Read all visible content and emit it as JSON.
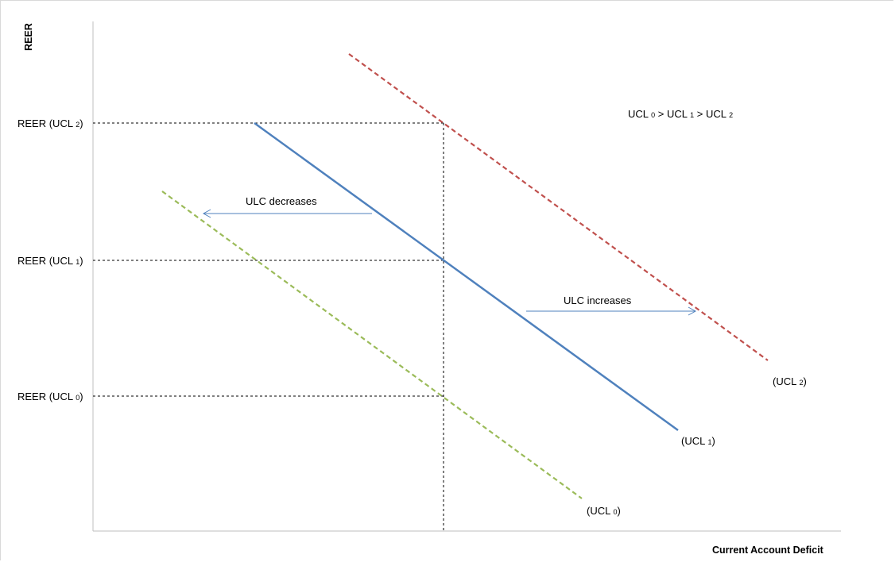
{
  "axes": {
    "y_label": "REER",
    "x_label": "Current Account Deficit"
  },
  "y_ticks": [
    {
      "main": "REER (UCL ",
      "sub": "2",
      "end": ")"
    },
    {
      "main": "REER (UCL ",
      "sub": "1",
      "end": ")"
    },
    {
      "main": "REER (UCL ",
      "sub": "0",
      "end": ")"
    }
  ],
  "curves": [
    {
      "label_main": "(UCL ",
      "sub": "2",
      "end": ")",
      "color": "#c0504d",
      "style": "dashed"
    },
    {
      "label_main": "(UCL ",
      "sub": "1",
      "end": ")",
      "color": "#4f81bd",
      "style": "solid"
    },
    {
      "label_main": "(UCL ",
      "sub": "0",
      "end": ")",
      "color": "#9bbb59",
      "style": "dashed"
    }
  ],
  "annotations": {
    "ulc_decreases": "ULC decreases",
    "ulc_increases": "ULC increases",
    "arrow_color": "#4f81bd",
    "inequality": {
      "p1": "UCL ",
      "s1": "0",
      "p2": " > UCL ",
      "s2": "1",
      "p3": " > UCL ",
      "s3": "2"
    }
  }
}
